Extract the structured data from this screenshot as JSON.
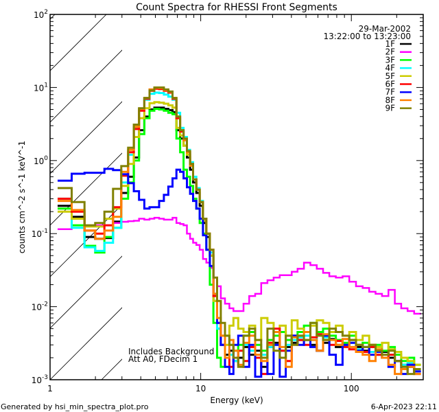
{
  "chart_data": {
    "type": "line",
    "title": "Count Spectra for RHESSI Front Segments",
    "xlabel": "Energy (keV)",
    "ylabel": "counts cm^-2 s^-1 keV^-1",
    "xscale": "log",
    "yscale": "log",
    "xlim": [
      1,
      300
    ],
    "ylim": [
      0.001,
      100
    ],
    "x_ticks": [
      {
        "value": 1,
        "label": "1"
      },
      {
        "value": 10,
        "label": "10"
      },
      {
        "value": 100,
        "label": "100"
      }
    ],
    "y_ticks": [
      {
        "value": 0.001,
        "base": "10",
        "exp": "-3"
      },
      {
        "value": 0.01,
        "base": "10",
        "exp": "-2"
      },
      {
        "value": 0.1,
        "base": "10",
        "exp": "-1"
      },
      {
        "value": 1,
        "base": "10",
        "exp": "0"
      },
      {
        "value": 10,
        "base": "10",
        "exp": "1"
      },
      {
        "value": 100,
        "base": "10",
        "exp": "2"
      }
    ],
    "hatched_region_keV": [
      1,
      3
    ],
    "legend_placement": "top-right",
    "date": "29-Mar-2002",
    "time_range": "13:22:00 to 13:23:00",
    "annotations": [
      "Includes Background",
      "Att A0, FDecim 1"
    ],
    "x": [
      1.25,
      1.55,
      1.85,
      2.15,
      2.45,
      2.8,
      3.15,
      3.45,
      3.75,
      4.05,
      4.4,
      4.75,
      5.1,
      5.5,
      5.9,
      6.3,
      6.7,
      7.1,
      7.5,
      7.9,
      8.3,
      8.7,
      9.1,
      9.6,
      10.1,
      10.6,
      11.2,
      11.8,
      12.5,
      13.2,
      14,
      15,
      16,
      17,
      18.5,
      20,
      22,
      24,
      26.5,
      29,
      32,
      35,
      38.5,
      42,
      46,
      51,
      56,
      62,
      68,
      75,
      83,
      92,
      102,
      113,
      125,
      138,
      152,
      168,
      185,
      204,
      225,
      248,
      275
    ],
    "series": [
      {
        "name": "1F",
        "color": "#000000",
        "values": [
          0.24,
          0.17,
          0.09,
          0.085,
          0.087,
          0.146,
          0.36,
          0.6,
          1.1,
          2.6,
          4.0,
          5.0,
          5.3,
          5.3,
          5.1,
          4.9,
          4.6,
          2.6,
          2.0,
          1.6,
          1.1,
          0.75,
          0.5,
          0.36,
          0.24,
          0.14,
          0.09,
          0.05,
          0.012,
          0.005,
          0.003,
          0.0022,
          0.0025,
          0.0018,
          0.002,
          0.0028,
          0.0022,
          0.0025,
          0.0015,
          0.0028,
          0.0032,
          0.0025,
          0.0028,
          0.0032,
          0.0035,
          0.0035,
          0.003,
          0.0025,
          0.0032,
          0.0036,
          0.0028,
          0.003,
          0.0035,
          0.0028,
          0.0025,
          0.003,
          0.0022,
          0.0024,
          0.002,
          0.0018,
          0.0016,
          0.0015,
          0.0013
        ]
      },
      {
        "name": "2F",
        "color": "#ff00ff",
        "values": [
          0.115,
          0.12,
          0.125,
          0.13,
          0.13,
          0.14,
          0.145,
          0.148,
          0.15,
          0.16,
          0.155,
          0.16,
          0.165,
          0.16,
          0.155,
          0.155,
          0.165,
          0.14,
          0.135,
          0.13,
          0.1,
          0.085,
          0.075,
          0.07,
          0.06,
          0.045,
          0.04,
          0.034,
          0.025,
          0.019,
          0.013,
          0.011,
          0.0095,
          0.0087,
          0.0087,
          0.011,
          0.014,
          0.015,
          0.021,
          0.023,
          0.025,
          0.027,
          0.027,
          0.03,
          0.033,
          0.04,
          0.037,
          0.033,
          0.029,
          0.026,
          0.025,
          0.026,
          0.022,
          0.019,
          0.018,
          0.016,
          0.015,
          0.014,
          0.017,
          0.011,
          0.0095,
          0.0087,
          0.008
        ]
      },
      {
        "name": "3F",
        "color": "#00ff00",
        "values": [
          0.22,
          0.13,
          0.068,
          0.055,
          0.09,
          0.12,
          0.3,
          0.5,
          1.0,
          2.3,
          3.8,
          4.8,
          5.1,
          5.0,
          4.8,
          4.5,
          4.3,
          2.0,
          1.3,
          0.75,
          0.6,
          0.45,
          0.3,
          0.22,
          0.14,
          0.1,
          0.06,
          0.02,
          0.006,
          0.002,
          0.0015,
          0.004,
          0.003,
          0.0025,
          0.003,
          0.004,
          0.0045,
          0.003,
          0.0025,
          0.0035,
          0.004,
          0.0045,
          0.0035,
          0.004,
          0.0045,
          0.0055,
          0.006,
          0.0045,
          0.005,
          0.004,
          0.0035,
          0.0032,
          0.004,
          0.003,
          0.0032,
          0.0028,
          0.003,
          0.0025,
          0.0028,
          0.0022,
          0.0018,
          0.002,
          0.0016
        ]
      },
      {
        "name": "4F",
        "color": "#00ffff",
        "values": [
          0.3,
          0.12,
          0.065,
          0.058,
          0.075,
          0.12,
          0.5,
          1.2,
          2.8,
          5.0,
          6.8,
          8.2,
          8.5,
          8.4,
          8.0,
          7.5,
          6.8,
          4.5,
          2.8,
          2.1,
          1.4,
          0.95,
          0.6,
          0.42,
          0.28,
          0.16,
          0.1,
          0.055,
          0.012,
          0.005,
          0.003,
          0.002,
          0.0022,
          0.0018,
          0.0025,
          0.003,
          0.0025,
          0.002,
          0.0022,
          0.0028,
          0.003,
          0.0025,
          0.003,
          0.0035,
          0.0038,
          0.004,
          0.0035,
          0.0042,
          0.0038,
          0.0035,
          0.003,
          0.0028,
          0.0032,
          0.0026,
          0.0028,
          0.0024,
          0.0022,
          0.002,
          0.0022,
          0.0018,
          0.0016,
          0.0017,
          0.0014
        ]
      },
      {
        "name": "5F",
        "color": "#cccc00",
        "values": [
          0.2,
          0.16,
          0.125,
          0.125,
          0.16,
          0.22,
          0.45,
          0.9,
          2.1,
          3.8,
          5.2,
          6.1,
          6.3,
          6.2,
          6.0,
          5.7,
          5.3,
          2.8,
          2.2,
          1.6,
          1.2,
          0.85,
          0.55,
          0.4,
          0.27,
          0.15,
          0.1,
          0.05,
          0.012,
          0.006,
          0.004,
          0.003,
          0.0055,
          0.007,
          0.005,
          0.0045,
          0.0055,
          0.0035,
          0.007,
          0.006,
          0.0045,
          0.0055,
          0.004,
          0.0065,
          0.005,
          0.0045,
          0.0055,
          0.0065,
          0.006,
          0.0045,
          0.0055,
          0.004,
          0.0045,
          0.0035,
          0.004,
          0.003,
          0.0028,
          0.0032,
          0.0026,
          0.0024,
          0.002,
          0.0018,
          0.0016
        ]
      },
      {
        "name": "6F",
        "color": "#ff0000",
        "values": [
          0.3,
          0.2,
          0.11,
          0.1,
          0.13,
          0.23,
          0.62,
          1.3,
          2.7,
          4.8,
          7.0,
          9.0,
          9.6,
          9.5,
          9.0,
          8.5,
          7.0,
          3.8,
          2.5,
          1.9,
          1.3,
          0.9,
          0.55,
          0.4,
          0.27,
          0.16,
          0.1,
          0.06,
          0.014,
          0.006,
          0.003,
          0.002,
          0.0015,
          0.002,
          0.0025,
          0.0018,
          0.0028,
          0.002,
          0.0012,
          0.0032,
          0.005,
          0.0025,
          0.0018,
          0.004,
          0.0035,
          0.003,
          0.0038,
          0.0042,
          0.0035,
          0.003,
          0.0034,
          0.0028,
          0.0026,
          0.003,
          0.0024,
          0.0028,
          0.0022,
          0.002,
          0.0022,
          0.0018,
          0.0014,
          0.0016,
          0.0012
        ]
      },
      {
        "name": "7F",
        "color": "#0000ff",
        "values": [
          0.53,
          0.66,
          0.68,
          0.68,
          0.77,
          0.74,
          0.65,
          0.49,
          0.38,
          0.29,
          0.22,
          0.23,
          0.23,
          0.28,
          0.34,
          0.44,
          0.57,
          0.75,
          0.7,
          0.57,
          0.43,
          0.35,
          0.28,
          0.22,
          0.16,
          0.095,
          0.06,
          0.036,
          0.015,
          0.006,
          0.003,
          0.0015,
          0.0012,
          0.003,
          0.004,
          0.0015,
          0.003,
          0.0011,
          0.002,
          0.0012,
          0.003,
          0.0011,
          0.0025,
          0.004,
          0.003,
          0.0035,
          0.0028,
          0.0025,
          0.004,
          0.0022,
          0.0016,
          0.003,
          0.0032,
          0.0025,
          0.0028,
          0.0022,
          0.0024,
          0.002,
          0.0015,
          0.0018,
          0.0012,
          0.0016,
          0.0013
        ]
      },
      {
        "name": "8F",
        "color": "#ff8000",
        "values": [
          0.28,
          0.21,
          0.11,
          0.085,
          0.11,
          0.17,
          0.7,
          1.4,
          2.9,
          5.1,
          7.2,
          9.4,
          9.9,
          9.8,
          9.2,
          8.7,
          7.2,
          4.0,
          2.6,
          1.9,
          1.3,
          0.85,
          0.55,
          0.4,
          0.27,
          0.16,
          0.1,
          0.06,
          0.015,
          0.007,
          0.004,
          0.002,
          0.0035,
          0.0025,
          0.0016,
          0.0032,
          0.004,
          0.0022,
          0.0018,
          0.003,
          0.0045,
          0.0028,
          0.0015,
          0.0038,
          0.004,
          0.0045,
          0.0035,
          0.0025,
          0.0042,
          0.0035,
          0.003,
          0.0036,
          0.0028,
          0.0024,
          0.0022,
          0.0018,
          0.0026,
          0.002,
          0.0016,
          0.0012,
          0.0014,
          0.0015,
          0.0012
        ]
      },
      {
        "name": "9F",
        "color": "#808000",
        "values": [
          0.42,
          0.27,
          0.13,
          0.14,
          0.2,
          0.41,
          0.84,
          1.5,
          3.1,
          5.2,
          7.2,
          9.1,
          10,
          10,
          9.4,
          8.8,
          7.2,
          4.0,
          2.6,
          2.0,
          1.35,
          0.9,
          0.55,
          0.4,
          0.27,
          0.16,
          0.1,
          0.06,
          0.025,
          0.012,
          0.006,
          0.004,
          0.003,
          0.002,
          0.0015,
          0.004,
          0.005,
          0.0035,
          0.002,
          0.005,
          0.0025,
          0.002,
          0.004,
          0.003,
          0.004,
          0.0035,
          0.006,
          0.004,
          0.0035,
          0.005,
          0.0045,
          0.004,
          0.0035,
          0.003,
          0.0028,
          0.003,
          0.0025,
          0.0022,
          0.0025,
          0.0018,
          0.0015,
          0.0012,
          0.0014
        ]
      }
    ]
  },
  "footer": {
    "generated_by": "Generated by hsi_min_spectra_plot.pro",
    "timestamp": "6-Apr-2023 22:11"
  }
}
